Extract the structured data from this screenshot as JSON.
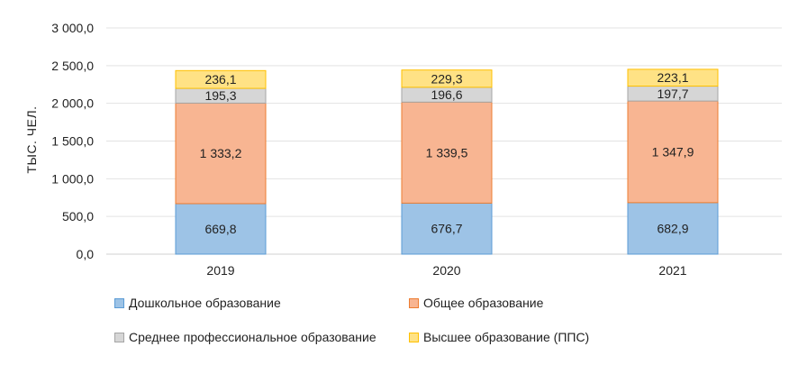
{
  "chart_data": {
    "type": "bar",
    "stacked": true,
    "categories": [
      "2019",
      "2020",
      "2021"
    ],
    "ylabel": "ТЫС. ЧЕЛ.",
    "ylim": [
      0,
      3000
    ],
    "yticks": [
      "0,0",
      "500,0",
      "1 000,0",
      "1 500,0",
      "2 000,0",
      "2 500,0",
      "3 000,0"
    ],
    "grid": true,
    "legend_position": "bottom",
    "series": [
      {
        "name": "Дошкольное образование",
        "values": [
          669.8,
          676.7,
          682.9
        ],
        "labels": [
          "669,8",
          "676,7",
          "682,9"
        ],
        "color": "#9dc3e6",
        "stroke": "#5b9bd5"
      },
      {
        "name": "Общее образование",
        "values": [
          1333.2,
          1339.5,
          1347.9
        ],
        "labels": [
          "1 333,2",
          "1 339,5",
          "1 347,9"
        ],
        "color": "#f8b592",
        "stroke": "#ed7d31"
      },
      {
        "name": "Среднее профессиональное образование",
        "values": [
          195.3,
          196.6,
          197.7
        ],
        "labels": [
          "195,3",
          "196,6",
          "197,7"
        ],
        "color": "#d6d6d6",
        "stroke": "#a5a5a5"
      },
      {
        "name": "Высшее образование (ППС)",
        "values": [
          236.1,
          229.3,
          223.1
        ],
        "labels": [
          "236,1",
          "229,3",
          "223,1"
        ],
        "color": "#ffe285",
        "stroke": "#ffc000"
      }
    ]
  }
}
